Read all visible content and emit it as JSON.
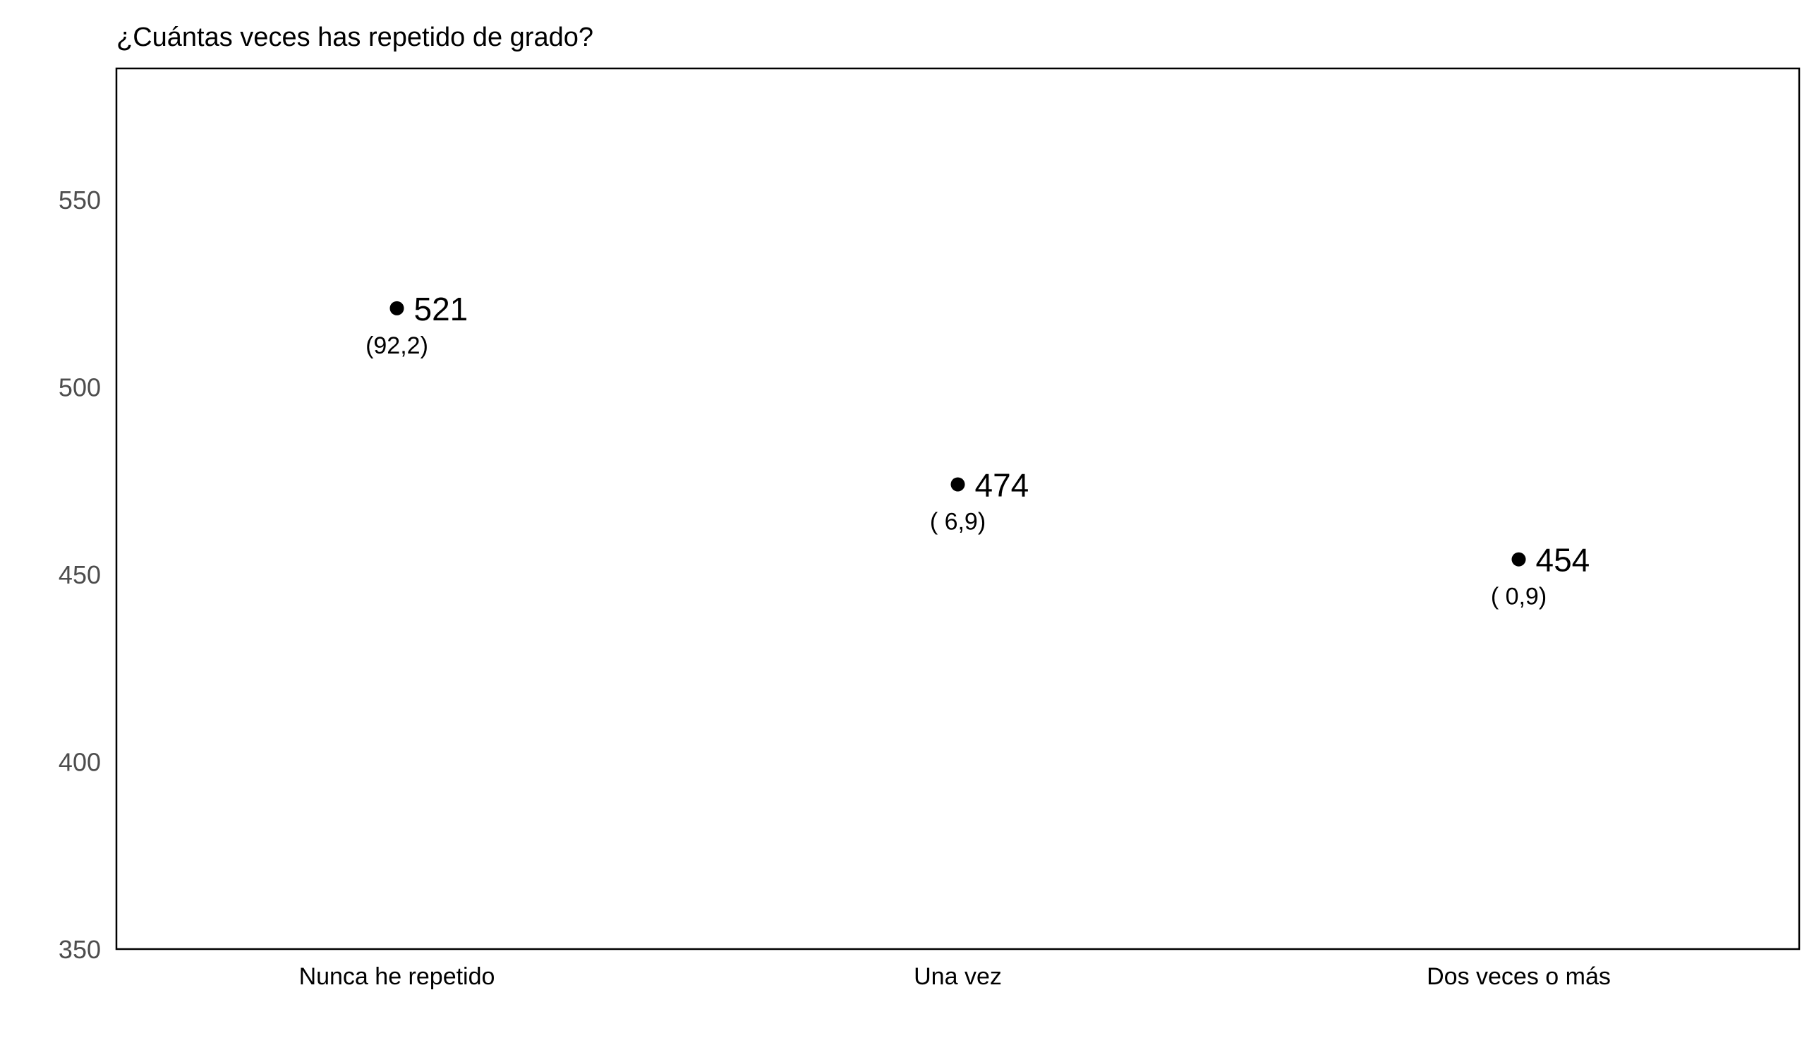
{
  "chart_data": {
    "type": "scatter",
    "title": "¿Cuántas veces has repetido de grado?",
    "xlabel": "",
    "ylabel": "",
    "categories": [
      "Nunca he repetido",
      "Una vez",
      "Dos veces o más"
    ],
    "values": [
      521,
      474,
      454
    ],
    "value_labels": [
      "521",
      "474",
      "454"
    ],
    "sub_labels": [
      "(92,2)",
      "( 6,9)",
      "( 0,9)"
    ],
    "ylim": [
      350,
      585
    ],
    "yticks": [
      350,
      400,
      450,
      500,
      550
    ],
    "ytick_labels": [
      "350",
      "400",
      "450",
      "500",
      "550"
    ],
    "grid": false,
    "legend": "none",
    "colors": {
      "point": "#000000",
      "frame": "#000000",
      "tick_text": "#4d4d4d"
    }
  }
}
